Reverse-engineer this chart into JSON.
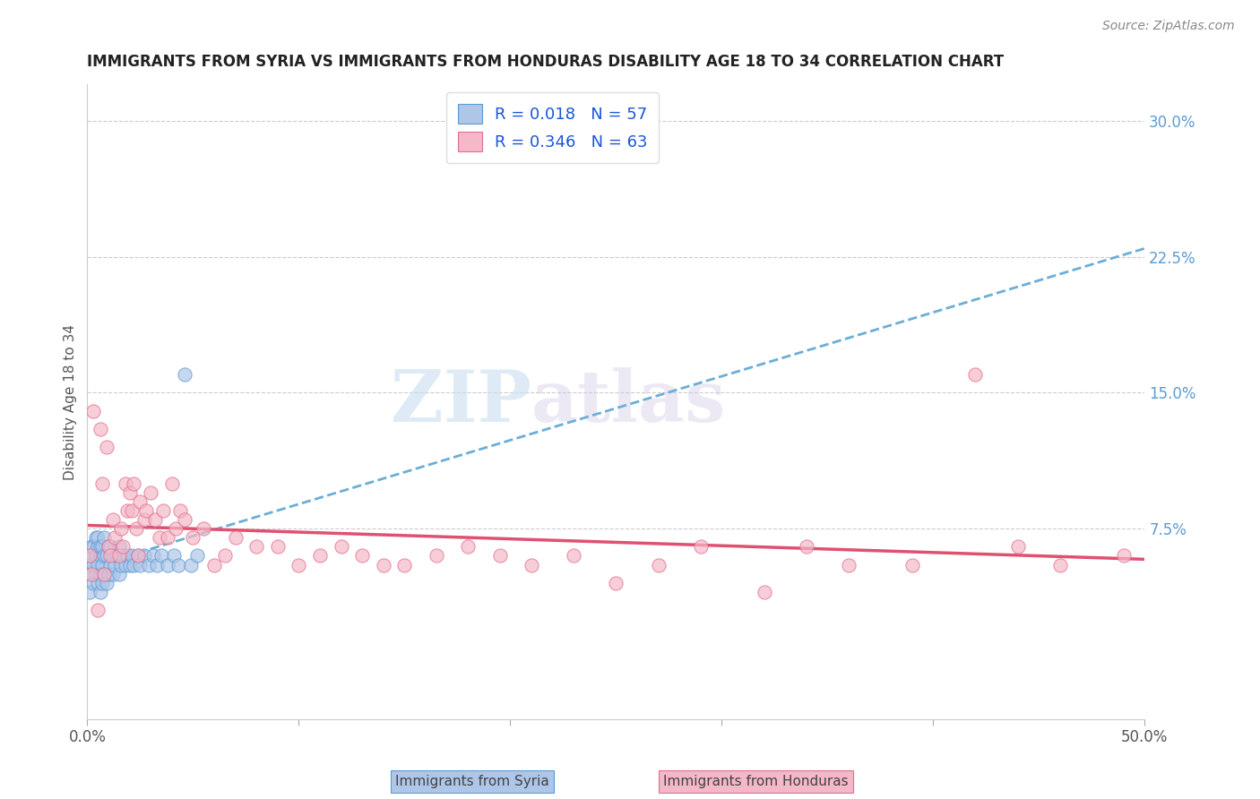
{
  "title": "IMMIGRANTS FROM SYRIA VS IMMIGRANTS FROM HONDURAS DISABILITY AGE 18 TO 34 CORRELATION CHART",
  "source": "Source: ZipAtlas.com",
  "ylabel": "Disability Age 18 to 34",
  "xlim": [
    0.0,
    0.5
  ],
  "ylim": [
    -0.03,
    0.32
  ],
  "syria_color": "#aec6e8",
  "syria_edge": "#5b9bd5",
  "honduras_color": "#f4b8c8",
  "honduras_edge": "#e07090",
  "syria_line_color": "#6baed6",
  "honduras_line_color": "#e05070",
  "background_color": "#ffffff",
  "watermark_zip": "ZIP",
  "watermark_atlas": "atlas",
  "grid_color": "#cccccc",
  "right_tick_color": "#5b9bd5",
  "syria_x": [
    0.001,
    0.001,
    0.002,
    0.002,
    0.002,
    0.003,
    0.003,
    0.003,
    0.004,
    0.004,
    0.004,
    0.005,
    0.005,
    0.005,
    0.005,
    0.006,
    0.006,
    0.006,
    0.006,
    0.007,
    0.007,
    0.007,
    0.008,
    0.008,
    0.008,
    0.009,
    0.009,
    0.01,
    0.01,
    0.011,
    0.011,
    0.012,
    0.012,
    0.013,
    0.014,
    0.015,
    0.015,
    0.016,
    0.017,
    0.018,
    0.019,
    0.02,
    0.021,
    0.022,
    0.024,
    0.025,
    0.027,
    0.029,
    0.031,
    0.033,
    0.035,
    0.038,
    0.041,
    0.043,
    0.046,
    0.049,
    0.052
  ],
  "syria_y": [
    0.04,
    0.055,
    0.05,
    0.06,
    0.065,
    0.045,
    0.055,
    0.065,
    0.05,
    0.06,
    0.07,
    0.045,
    0.055,
    0.065,
    0.07,
    0.04,
    0.05,
    0.06,
    0.065,
    0.045,
    0.055,
    0.065,
    0.05,
    0.06,
    0.07,
    0.045,
    0.06,
    0.05,
    0.065,
    0.055,
    0.065,
    0.05,
    0.06,
    0.055,
    0.06,
    0.05,
    0.065,
    0.055,
    0.06,
    0.055,
    0.06,
    0.055,
    0.06,
    0.055,
    0.06,
    0.055,
    0.06,
    0.055,
    0.06,
    0.055,
    0.06,
    0.055,
    0.06,
    0.055,
    0.16,
    0.055,
    0.06
  ],
  "honduras_x": [
    0.001,
    0.002,
    0.003,
    0.005,
    0.006,
    0.007,
    0.008,
    0.009,
    0.01,
    0.011,
    0.012,
    0.013,
    0.015,
    0.016,
    0.017,
    0.018,
    0.019,
    0.02,
    0.021,
    0.022,
    0.023,
    0.024,
    0.025,
    0.027,
    0.028,
    0.03,
    0.032,
    0.034,
    0.036,
    0.038,
    0.04,
    0.042,
    0.044,
    0.046,
    0.05,
    0.055,
    0.06,
    0.065,
    0.07,
    0.08,
    0.09,
    0.1,
    0.11,
    0.12,
    0.13,
    0.14,
    0.15,
    0.165,
    0.18,
    0.195,
    0.21,
    0.23,
    0.25,
    0.27,
    0.29,
    0.32,
    0.34,
    0.36,
    0.39,
    0.42,
    0.44,
    0.46,
    0.49
  ],
  "honduras_y": [
    0.06,
    0.05,
    0.14,
    0.03,
    0.13,
    0.1,
    0.05,
    0.12,
    0.065,
    0.06,
    0.08,
    0.07,
    0.06,
    0.075,
    0.065,
    0.1,
    0.085,
    0.095,
    0.085,
    0.1,
    0.075,
    0.06,
    0.09,
    0.08,
    0.085,
    0.095,
    0.08,
    0.07,
    0.085,
    0.07,
    0.1,
    0.075,
    0.085,
    0.08,
    0.07,
    0.075,
    0.055,
    0.06,
    0.07,
    0.065,
    0.065,
    0.055,
    0.06,
    0.065,
    0.06,
    0.055,
    0.055,
    0.06,
    0.065,
    0.06,
    0.055,
    0.06,
    0.045,
    0.055,
    0.065,
    0.04,
    0.065,
    0.055,
    0.055,
    0.16,
    0.065,
    0.055,
    0.06
  ]
}
